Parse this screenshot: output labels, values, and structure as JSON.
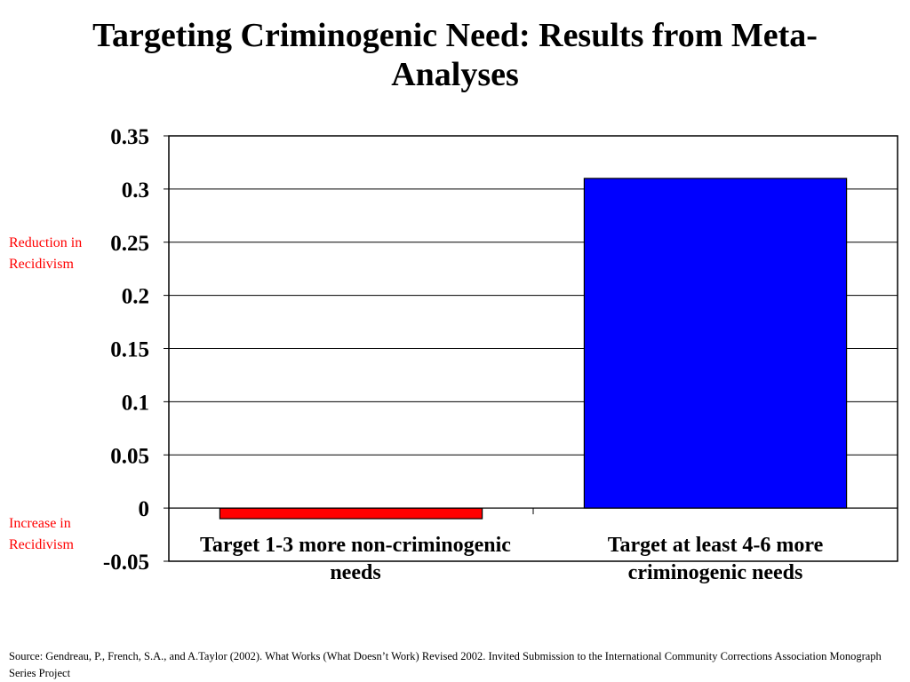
{
  "slide": {
    "title_line1": "Targeting Criminogenic Need: Results from Meta-",
    "title_line2": "Analyses",
    "upper_label_line1": "Reduction in",
    "upper_label_line2": "Recidivism",
    "lower_label_line1": "Increase in",
    "lower_label_line2": "Recidivism",
    "source": "Source:  Gendreau, P., French, S.A., and A.Taylor (2002).  What Works (What Doesn’t Work) Revised 2002.  Invited Submission to the International Community Corrections Association Monograph Series Project"
  },
  "chart_data": {
    "type": "bar",
    "categories": [
      [
        "Target 1-3 more non-criminogenic",
        "needs"
      ],
      [
        "Target at least 4-6 more",
        "criminogenic needs"
      ]
    ],
    "values": [
      -0.01,
      0.31
    ],
    "bar_colors": [
      "#ff0000",
      "#0000ff"
    ],
    "ylim": [
      -0.05,
      0.35
    ],
    "yticks": [
      -0.05,
      0,
      0.05,
      0.1,
      0.15,
      0.2,
      0.25,
      0.3,
      0.35
    ],
    "ytick_labels": [
      "-0.05",
      "0",
      "0.05",
      "0.1",
      "0.15",
      "0.2",
      "0.25",
      "0.3",
      "0.35"
    ],
    "grid": true,
    "legend": "none"
  }
}
